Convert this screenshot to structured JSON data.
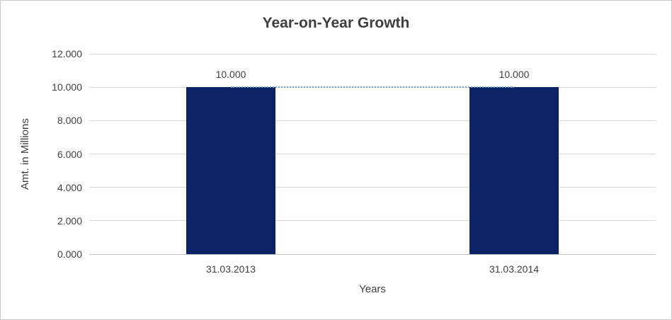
{
  "chart": {
    "title": "Year-on-Year Growth"
  },
  "chart_data": {
    "type": "bar",
    "title": "Year-on-Year Growth",
    "xlabel": "Years",
    "ylabel": "Amt. in Millions",
    "categories": [
      "31.03.2013",
      "31.03.2014"
    ],
    "values": [
      10.0,
      10.0
    ],
    "data_labels": [
      "10.000",
      "10.000"
    ],
    "ylim": [
      0,
      12
    ],
    "ytick_step": 2,
    "ytick_labels": [
      "0.000",
      "2.000",
      "4.000",
      "6.000",
      "8.000",
      "10.000",
      "12.000"
    ],
    "grid": true,
    "legend": "none",
    "bar_color": "#0b2265",
    "gridline_color": "#d9d9d9",
    "trendline": {
      "style": "dotted",
      "color": "#7da7d9",
      "at_value": 10
    }
  }
}
